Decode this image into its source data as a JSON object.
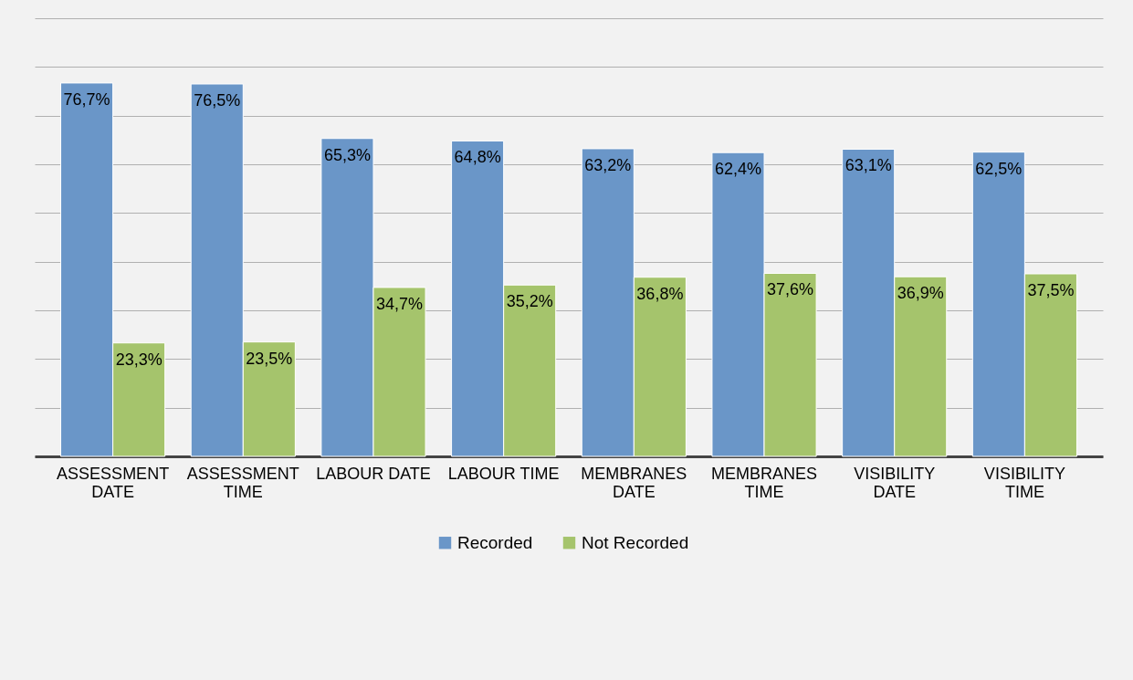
{
  "chart_data": {
    "type": "bar",
    "categories": [
      "ASSESSMENT DATE",
      "ASSESSMENT TIME",
      "LABOUR DATE",
      "LABOUR TIME",
      "MEMBRANES DATE",
      "MEMBRANES TIME",
      "VISIBILITY DATE",
      "VISIBILITY TIME"
    ],
    "series": [
      {
        "name": "Recorded",
        "color": "#6a96c8",
        "values": [
          76.7,
          76.5,
          65.3,
          64.8,
          63.2,
          62.4,
          63.1,
          62.5
        ],
        "value_labels": [
          "76,7%",
          "76,5%",
          "65,3%",
          "64,8%",
          "63,2%",
          "62,4%",
          "63,1%",
          "62,5%"
        ]
      },
      {
        "name": "Not Recorded",
        "color": "#a5c46c",
        "values": [
          23.3,
          23.5,
          34.7,
          35.2,
          36.8,
          37.6,
          36.9,
          37.5
        ],
        "value_labels": [
          "23,3%",
          "23,5%",
          "34,7%",
          "35,2%",
          "36,8%",
          "37,6%",
          "36,9%",
          "37,5%"
        ]
      }
    ],
    "ylim": [
      0,
      90
    ],
    "yticks": [
      {
        "value": 0,
        "label": null
      },
      {
        "value": 10,
        "label": null
      },
      {
        "value": 20,
        "label": null
      },
      {
        "value": 30,
        "label": null
      },
      {
        "value": 40,
        "label": null
      },
      {
        "value": 50,
        "label": null
      },
      {
        "value": 60,
        "label": null
      },
      {
        "value": 70,
        "label": null
      },
      {
        "value": 80,
        "label": null
      },
      {
        "value": 90,
        "label": null
      }
    ],
    "grid": "y",
    "tick_labels": "x",
    "legend": "bottom"
  }
}
